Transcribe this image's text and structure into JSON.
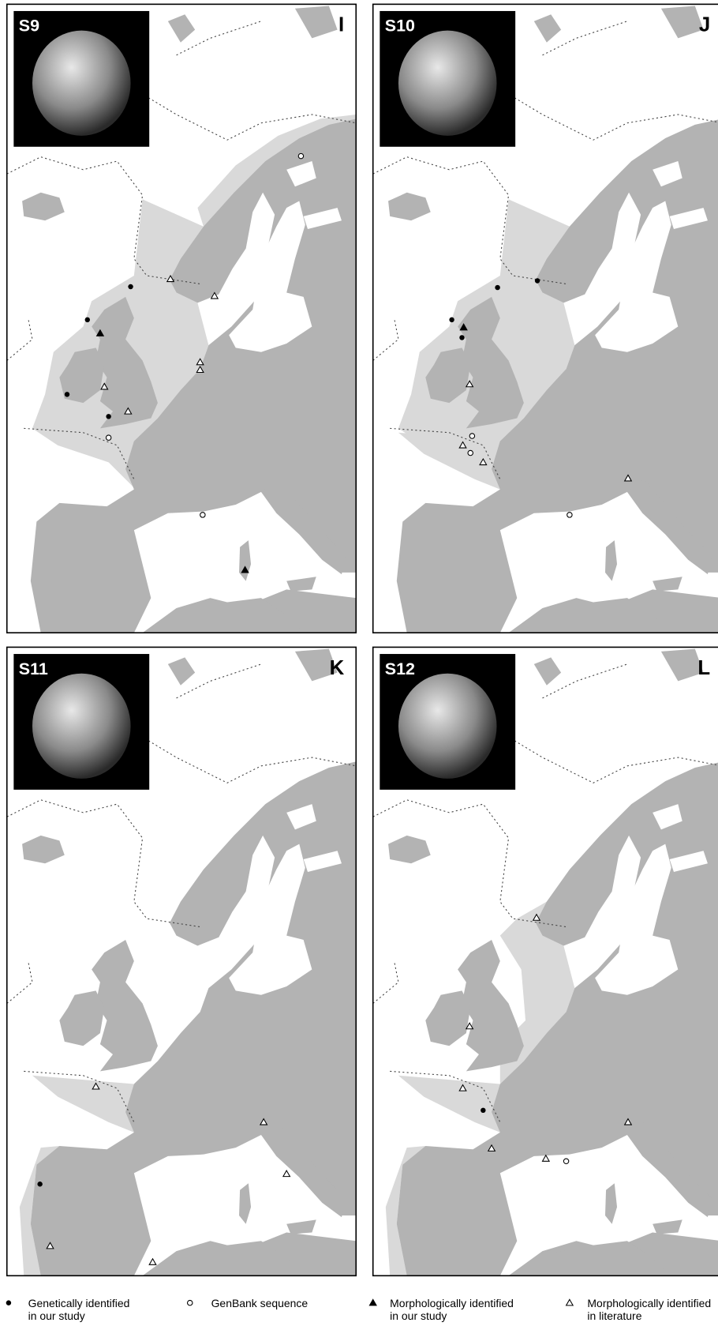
{
  "panels": [
    {
      "code": "S9",
      "letter": "I"
    },
    {
      "code": "S10",
      "letter": "J"
    },
    {
      "code": "S11",
      "letter": "K"
    },
    {
      "code": "S12",
      "letter": "L"
    }
  ],
  "legend": [
    {
      "lines": [
        "Genetically identified",
        "in our study"
      ]
    },
    {
      "lines": [
        "GenBank sequence"
      ]
    },
    {
      "lines": [
        "Morphologically identified",
        "in our study"
      ]
    },
    {
      "lines": [
        "Morphologically identified",
        "in literature"
      ]
    }
  ]
}
